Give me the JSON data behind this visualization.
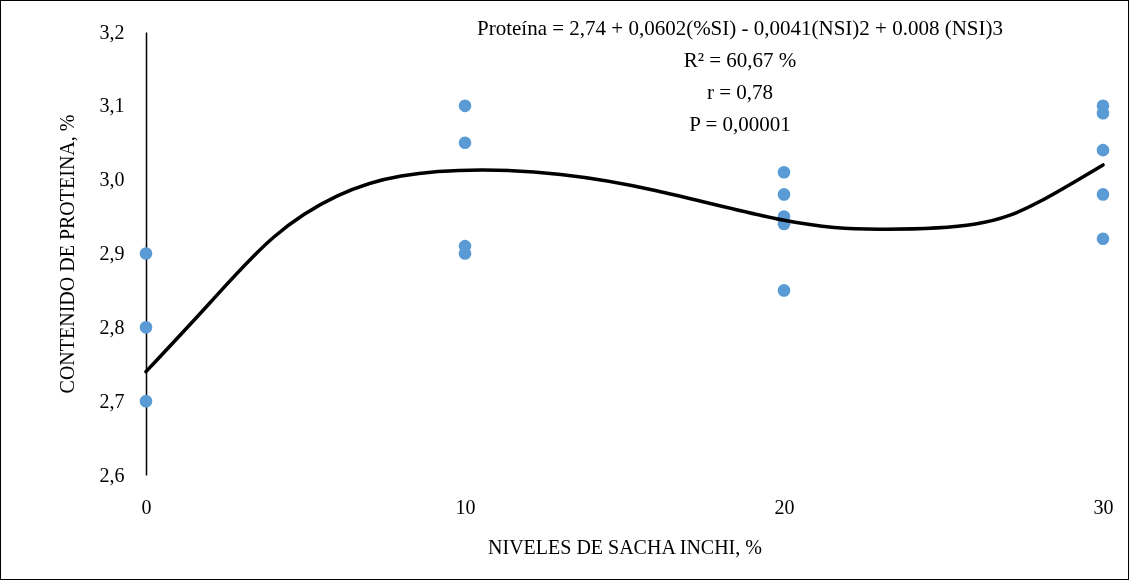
{
  "chart_data": {
    "type": "scatter",
    "xlabel": "NIVELES DE SACHA INCHI, %",
    "ylabel": "CONTENIDO DE PROTEINA, %",
    "annotations": [
      "Proteína = 2,74 + 0,0602(%SI)  - 0,0041(NSI)2  + 0.008 (NSI)3",
      "R² =  60,67 %",
      "r = 0,78",
      "P = 0,00001"
    ],
    "xlim": [
      0,
      30
    ],
    "xticks": [
      0,
      10,
      20,
      30
    ],
    "ylim": [
      2.6,
      3.2
    ],
    "yticks": [
      {
        "value": 2.6,
        "label": "2,6"
      },
      {
        "value": 2.7,
        "label": "2,7"
      },
      {
        "value": 2.8,
        "label": "2,8"
      },
      {
        "value": 2.9,
        "label": "2,9"
      },
      {
        "value": 3.0,
        "label": "3,0"
      },
      {
        "value": 3.1,
        "label": "3,1"
      },
      {
        "value": 3.2,
        "label": "3,2"
      }
    ],
    "series": [
      {
        "marker": "circle",
        "color": "#5b9bd5",
        "x": [
          0,
          0,
          0,
          10,
          10,
          10,
          10,
          20,
          20,
          20,
          20,
          20,
          30,
          30,
          30,
          30,
          30
        ],
        "values": [
          2.9,
          2.8,
          2.7,
          3.1,
          3.05,
          2.91,
          2.9,
          3.01,
          2.98,
          2.95,
          2.94,
          2.85,
          3.1,
          3.09,
          3.04,
          2.98,
          2.92
        ]
      },
      {
        "type": "line",
        "marker": "none",
        "line_style": "solid",
        "color": "#000000",
        "x": [
          0,
          2,
          4,
          6,
          8,
          10.5,
          13,
          16,
          20,
          23,
          26,
          28,
          30
        ],
        "values": [
          2.74,
          2.833,
          2.922,
          2.978,
          3.005,
          3.013,
          3.007,
          2.985,
          2.945,
          2.933,
          2.94,
          2.97,
          3.02
        ]
      }
    ]
  }
}
